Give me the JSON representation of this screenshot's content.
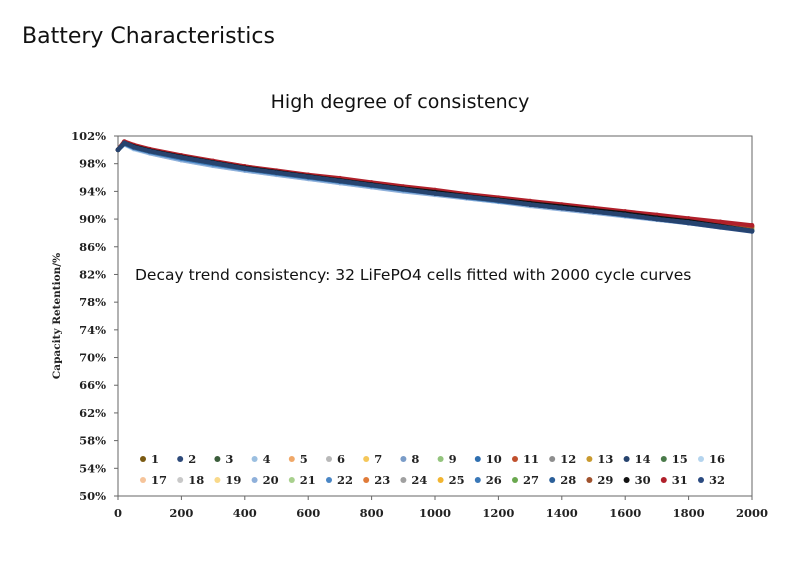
{
  "page": {
    "heading": "Battery Characteristics"
  },
  "chart_data": {
    "type": "scatter",
    "title": "High degree of consistency",
    "xlabel": "",
    "ylabel": "Capacity Retention/%",
    "annotation": "Decay trend consistency: 32 LiFePO4 cells fitted with 2000 cycle curves",
    "xlim": [
      0,
      2000
    ],
    "ylim": [
      50,
      102
    ],
    "x_ticks": [
      0,
      200,
      400,
      600,
      800,
      1000,
      1200,
      1400,
      1600,
      1800,
      2000
    ],
    "y_ticks": [
      50,
      54,
      58,
      62,
      66,
      70,
      74,
      78,
      82,
      86,
      90,
      94,
      98,
      102
    ],
    "y_tick_suffix": "%",
    "grid": false,
    "legend_position": "bottom",
    "x": [
      0,
      20,
      50,
      100,
      200,
      300,
      400,
      500,
      600,
      700,
      800,
      900,
      1000,
      1100,
      1200,
      1300,
      1400,
      1500,
      1600,
      1700,
      1800,
      1900,
      2000
    ],
    "series": [
      {
        "name": "1",
        "color": "#7a5a12",
        "values": [
          100.0,
          101.1,
          100.5,
          99.9,
          99.0,
          98.2,
          97.4,
          96.8,
          96.2,
          95.6,
          95.0,
          94.4,
          93.9,
          93.3,
          92.8,
          92.3,
          91.8,
          91.3,
          90.8,
          90.3,
          89.7,
          89.1,
          88.6
        ]
      },
      {
        "name": "2",
        "color": "#2e4a7a",
        "values": [
          100.0,
          101.0,
          100.5,
          99.8,
          98.9,
          98.1,
          97.4,
          96.7,
          96.1,
          95.5,
          94.9,
          94.3,
          93.8,
          93.2,
          92.7,
          92.2,
          91.7,
          91.2,
          90.7,
          90.1,
          89.6,
          89.0,
          88.4
        ]
      },
      {
        "name": "3",
        "color": "#3b5d3b",
        "values": [
          100.0,
          101.0,
          100.4,
          99.8,
          98.9,
          98.1,
          97.3,
          96.7,
          96.1,
          95.5,
          94.9,
          94.3,
          93.7,
          93.2,
          92.7,
          92.2,
          91.7,
          91.2,
          90.6,
          90.1,
          89.6,
          89.0,
          88.5
        ]
      },
      {
        "name": "4",
        "color": "#9bbfe0",
        "values": [
          100.0,
          100.9,
          100.2,
          99.6,
          98.6,
          97.8,
          97.1,
          96.5,
          95.9,
          95.3,
          94.7,
          94.1,
          93.6,
          93.0,
          92.5,
          92.0,
          91.5,
          91.0,
          90.5,
          90.0,
          89.4,
          88.9,
          88.4
        ]
      },
      {
        "name": "5",
        "color": "#f0a868",
        "values": [
          100.0,
          101.1,
          100.6,
          100.0,
          99.1,
          98.3,
          97.5,
          96.9,
          96.3,
          95.7,
          95.1,
          94.5,
          94.0,
          93.4,
          92.9,
          92.4,
          91.9,
          91.4,
          90.9,
          90.4,
          89.9,
          89.3,
          88.8
        ]
      },
      {
        "name": "6",
        "color": "#b8b8b8",
        "values": [
          100.0,
          101.0,
          100.4,
          99.8,
          98.9,
          98.1,
          97.3,
          96.7,
          96.1,
          95.5,
          94.9,
          94.3,
          93.8,
          93.2,
          92.7,
          92.2,
          91.7,
          91.2,
          90.7,
          90.2,
          89.6,
          89.1,
          88.6
        ]
      },
      {
        "name": "7",
        "color": "#f5c75a",
        "values": [
          100.0,
          101.1,
          100.5,
          99.9,
          99.0,
          98.2,
          97.4,
          96.8,
          96.2,
          95.6,
          95.0,
          94.4,
          93.9,
          93.3,
          92.8,
          92.3,
          91.8,
          91.3,
          90.8,
          90.3,
          89.8,
          89.2,
          88.7
        ]
      },
      {
        "name": "8",
        "color": "#7a9cc8",
        "values": [
          100.0,
          100.9,
          100.3,
          99.7,
          98.7,
          97.9,
          97.2,
          96.6,
          96.0,
          95.4,
          94.8,
          94.2,
          93.7,
          93.1,
          92.6,
          92.1,
          91.6,
          91.1,
          90.6,
          90.0,
          89.5,
          88.9,
          88.4
        ]
      },
      {
        "name": "9",
        "color": "#93c47d",
        "values": [
          100.0,
          101.0,
          100.4,
          99.8,
          98.9,
          98.1,
          97.3,
          96.7,
          96.1,
          95.5,
          94.9,
          94.3,
          93.8,
          93.2,
          92.7,
          92.2,
          91.7,
          91.2,
          90.7,
          90.1,
          89.6,
          89.0,
          88.5
        ]
      },
      {
        "name": "10",
        "color": "#2f6fb0",
        "values": [
          100.0,
          101.0,
          100.4,
          99.8,
          98.8,
          98.0,
          97.3,
          96.7,
          96.1,
          95.5,
          94.9,
          94.3,
          93.7,
          93.2,
          92.7,
          92.1,
          91.6,
          91.1,
          90.6,
          90.1,
          89.5,
          89.0,
          88.4
        ]
      },
      {
        "name": "11",
        "color": "#c0502d",
        "values": [
          100.0,
          101.1,
          100.6,
          100.0,
          99.1,
          98.3,
          97.6,
          96.9,
          96.3,
          95.8,
          95.2,
          94.6,
          94.1,
          93.5,
          93.0,
          92.5,
          92.0,
          91.5,
          91.0,
          90.5,
          90.0,
          89.5,
          89.0
        ]
      },
      {
        "name": "12",
        "color": "#8e8e8e",
        "values": [
          100.0,
          101.0,
          100.5,
          99.9,
          98.9,
          98.1,
          97.4,
          96.8,
          96.2,
          95.6,
          95.0,
          94.4,
          93.8,
          93.3,
          92.8,
          92.3,
          91.7,
          91.2,
          90.7,
          90.2,
          89.7,
          89.1,
          88.6
        ]
      },
      {
        "name": "13",
        "color": "#c99a2e",
        "values": [
          100.0,
          101.1,
          100.5,
          99.9,
          99.0,
          98.2,
          97.5,
          96.8,
          96.2,
          95.7,
          95.1,
          94.5,
          93.9,
          93.4,
          92.9,
          92.4,
          91.9,
          91.4,
          90.9,
          90.4,
          89.8,
          89.3,
          88.8
        ]
      },
      {
        "name": "14",
        "color": "#26436e",
        "values": [
          100.0,
          101.0,
          100.4,
          99.8,
          98.9,
          98.1,
          97.3,
          96.7,
          96.1,
          95.5,
          94.9,
          94.3,
          93.7,
          93.2,
          92.7,
          92.1,
          91.6,
          91.1,
          90.6,
          90.0,
          89.5,
          88.9,
          88.3
        ]
      },
      {
        "name": "15",
        "color": "#4a7a4a",
        "values": [
          100.0,
          101.0,
          100.4,
          99.8,
          98.8,
          98.0,
          97.3,
          96.7,
          96.1,
          95.5,
          94.9,
          94.3,
          93.7,
          93.2,
          92.7,
          92.2,
          91.7,
          91.2,
          90.6,
          90.1,
          89.6,
          89.0,
          88.5
        ]
      },
      {
        "name": "16",
        "color": "#b4d4ee",
        "values": [
          100.0,
          100.8,
          100.1,
          99.5,
          98.5,
          97.7,
          97.0,
          96.4,
          95.8,
          95.2,
          94.6,
          94.1,
          93.5,
          93.0,
          92.5,
          92.0,
          91.5,
          91.0,
          90.5,
          89.9,
          89.4,
          88.9,
          88.4
        ]
      },
      {
        "name": "17",
        "color": "#f6c49a",
        "values": [
          100.0,
          101.1,
          100.5,
          99.9,
          99.0,
          98.2,
          97.4,
          96.8,
          96.2,
          95.6,
          95.0,
          94.4,
          93.9,
          93.4,
          92.8,
          92.3,
          91.8,
          91.3,
          90.8,
          90.3,
          89.8,
          89.2,
          88.7
        ]
      },
      {
        "name": "18",
        "color": "#c8c8c8",
        "values": [
          100.0,
          101.0,
          100.4,
          99.8,
          98.9,
          98.1,
          97.3,
          96.7,
          96.1,
          95.5,
          94.9,
          94.3,
          93.8,
          93.2,
          92.7,
          92.2,
          91.7,
          91.2,
          90.7,
          90.1,
          89.6,
          89.1,
          88.6
        ]
      },
      {
        "name": "19",
        "color": "#f9d98a",
        "values": [
          100.0,
          101.1,
          100.5,
          99.9,
          99.0,
          98.2,
          97.4,
          96.8,
          96.2,
          95.6,
          95.0,
          94.4,
          93.9,
          93.3,
          92.8,
          92.3,
          91.8,
          91.3,
          90.8,
          90.3,
          89.7,
          89.2,
          88.7
        ]
      },
      {
        "name": "20",
        "color": "#8fb0da",
        "values": [
          100.0,
          100.8,
          100.2,
          99.5,
          98.5,
          97.7,
          97.0,
          96.4,
          95.8,
          95.2,
          94.6,
          94.0,
          93.5,
          93.0,
          92.5,
          91.9,
          91.4,
          90.9,
          90.4,
          89.9,
          89.4,
          88.8,
          88.3
        ]
      },
      {
        "name": "21",
        "color": "#a8d08d",
        "values": [
          100.0,
          101.0,
          100.4,
          99.8,
          98.9,
          98.1,
          97.3,
          96.7,
          96.1,
          95.5,
          94.9,
          94.3,
          93.8,
          93.2,
          92.7,
          92.2,
          91.7,
          91.2,
          90.7,
          90.1,
          89.6,
          89.1,
          88.5
        ]
      },
      {
        "name": "22",
        "color": "#4a86c5",
        "values": [
          100.0,
          100.9,
          100.3,
          99.7,
          98.7,
          97.9,
          97.2,
          96.6,
          96.0,
          95.4,
          94.8,
          94.2,
          93.7,
          93.1,
          92.6,
          92.1,
          91.6,
          91.1,
          90.5,
          90.0,
          89.5,
          88.9,
          88.3
        ]
      },
      {
        "name": "23",
        "color": "#e07b39",
        "values": [
          100.0,
          101.1,
          100.6,
          100.0,
          99.1,
          98.3,
          97.5,
          96.9,
          96.3,
          95.7,
          95.1,
          94.6,
          94.0,
          93.5,
          93.0,
          92.5,
          92.0,
          91.5,
          91.0,
          90.5,
          90.0,
          89.4,
          88.9
        ]
      },
      {
        "name": "24",
        "color": "#a0a0a0",
        "values": [
          100.0,
          101.0,
          100.4,
          99.8,
          98.9,
          98.1,
          97.3,
          96.7,
          96.1,
          95.5,
          94.9,
          94.3,
          93.8,
          93.2,
          92.7,
          92.2,
          91.7,
          91.2,
          90.7,
          90.2,
          89.6,
          89.1,
          88.6
        ]
      },
      {
        "name": "25",
        "color": "#f2b530",
        "values": [
          100.0,
          101.1,
          100.5,
          99.9,
          99.0,
          98.2,
          97.5,
          96.8,
          96.2,
          95.7,
          95.1,
          94.5,
          93.9,
          93.4,
          92.9,
          92.4,
          91.9,
          91.4,
          90.9,
          90.4,
          89.8,
          89.3,
          88.8
        ]
      },
      {
        "name": "26",
        "color": "#3a78b8",
        "values": [
          100.0,
          100.9,
          100.3,
          99.7,
          98.8,
          98.0,
          97.2,
          96.6,
          96.0,
          95.4,
          94.8,
          94.3,
          93.7,
          93.2,
          92.6,
          92.1,
          91.6,
          91.1,
          90.6,
          90.0,
          89.5,
          88.9,
          88.3
        ]
      },
      {
        "name": "27",
        "color": "#6aa84f",
        "values": [
          100.0,
          101.0,
          100.4,
          99.8,
          98.9,
          98.1,
          97.3,
          96.7,
          96.1,
          95.5,
          94.9,
          94.3,
          93.8,
          93.2,
          92.7,
          92.2,
          91.7,
          91.2,
          90.7,
          90.1,
          89.6,
          89.0,
          88.5
        ]
      },
      {
        "name": "28",
        "color": "#2b5f99",
        "values": [
          100.0,
          101.0,
          100.4,
          99.8,
          98.9,
          98.1,
          97.3,
          96.7,
          96.1,
          95.5,
          94.9,
          94.3,
          93.7,
          93.2,
          92.7,
          92.1,
          91.6,
          91.1,
          90.6,
          90.0,
          89.5,
          88.9,
          88.3
        ]
      },
      {
        "name": "29",
        "color": "#a0522d",
        "values": [
          100.0,
          101.1,
          100.6,
          100.0,
          99.1,
          98.3,
          97.5,
          96.9,
          96.3,
          95.8,
          95.2,
          94.6,
          94.1,
          93.5,
          93.0,
          92.5,
          92.0,
          91.5,
          91.0,
          90.5,
          90.0,
          89.4,
          88.9
        ]
      },
      {
        "name": "30",
        "color": "#111111",
        "values": [
          100.0,
          101.0,
          100.5,
          99.9,
          99.0,
          98.2,
          97.4,
          96.8,
          96.2,
          95.6,
          95.0,
          94.4,
          93.9,
          93.3,
          92.8,
          92.3,
          91.8,
          91.3,
          90.8,
          90.2,
          89.7,
          89.0,
          88.3
        ]
      },
      {
        "name": "31",
        "color": "#b0202a",
        "values": [
          100.0,
          101.2,
          100.7,
          100.1,
          99.2,
          98.4,
          97.6,
          97.0,
          96.4,
          95.9,
          95.3,
          94.7,
          94.2,
          93.6,
          93.1,
          92.6,
          92.1,
          91.6,
          91.1,
          90.6,
          90.1,
          89.6,
          89.1
        ]
      },
      {
        "name": "32",
        "color": "#2a4a80",
        "values": [
          100.0,
          101.0,
          100.4,
          99.8,
          98.9,
          98.1,
          97.3,
          96.7,
          96.1,
          95.5,
          94.9,
          94.3,
          93.8,
          93.2,
          92.7,
          92.1,
          91.6,
          91.1,
          90.6,
          90.0,
          89.4,
          88.8,
          88.2
        ]
      }
    ]
  }
}
